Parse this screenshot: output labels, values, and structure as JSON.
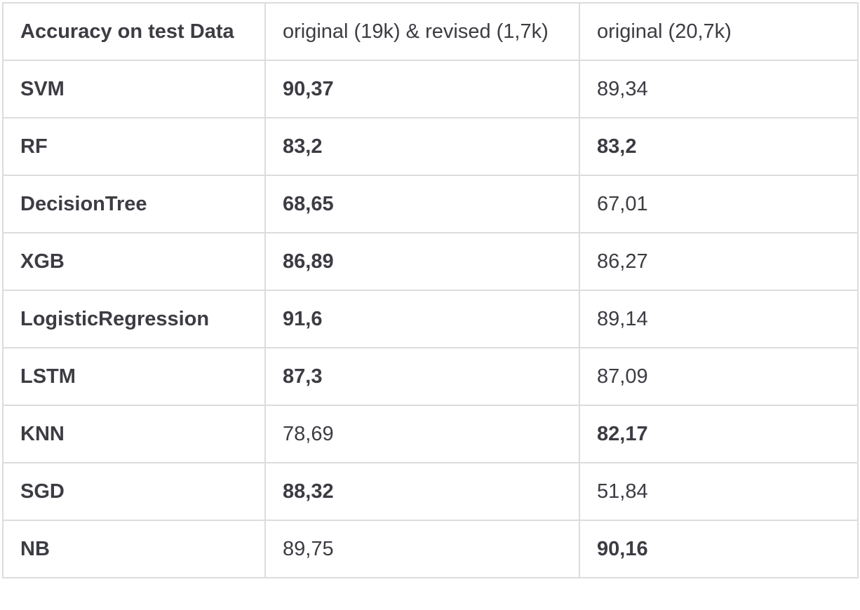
{
  "table": {
    "headers": [
      "Accuracy on test Data",
      "original (19k) & revised (1,7k)",
      "original (20,7k)"
    ],
    "rows": [
      {
        "model": "SVM",
        "col1": "90,37",
        "col2": "89,34",
        "bold1": true,
        "bold2": false
      },
      {
        "model": "RF",
        "col1": "83,2",
        "col2": "83,2",
        "bold1": true,
        "bold2": true
      },
      {
        "model": "DecisionTree",
        "col1": "68,65",
        "col2": "67,01",
        "bold1": true,
        "bold2": false
      },
      {
        "model": "XGB",
        "col1": "86,89",
        "col2": "86,27",
        "bold1": true,
        "bold2": false
      },
      {
        "model": "LogisticRegression",
        "col1": "91,6",
        "col2": "89,14",
        "bold1": true,
        "bold2": false
      },
      {
        "model": "LSTM",
        "col1": "87,3",
        "col2": "87,09",
        "bold1": true,
        "bold2": false
      },
      {
        "model": "KNN",
        "col1": "78,69",
        "col2": "82,17",
        "bold1": false,
        "bold2": true
      },
      {
        "model": "SGD",
        "col1": "88,32",
        "col2": "51,84",
        "bold1": true,
        "bold2": false
      },
      {
        "model": "NB",
        "col1": "89,75",
        "col2": "90,16",
        "bold1": false,
        "bold2": true
      }
    ]
  },
  "colors": {
    "text": "#3c3c43",
    "border": "#dcdcdc",
    "background": "#ffffff"
  }
}
